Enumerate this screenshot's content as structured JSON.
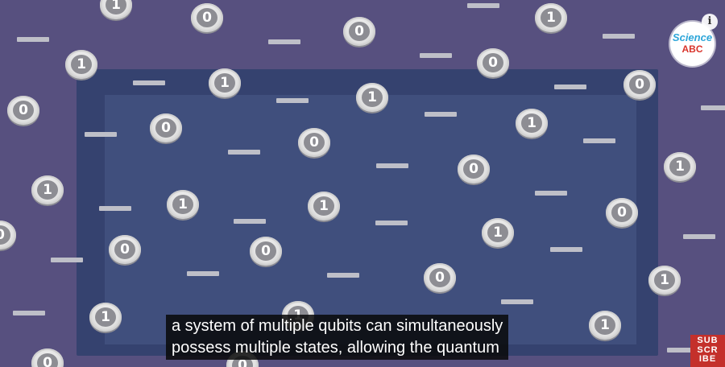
{
  "video": {
    "background_color": "#57507f",
    "panel_color": "#35426f",
    "coins": [
      {
        "label": "1"
      },
      {
        "label": "0"
      },
      {
        "label": "0"
      },
      {
        "label": "1"
      },
      {
        "label": "1"
      },
      {
        "label": "1"
      },
      {
        "label": "0"
      },
      {
        "label": "1"
      },
      {
        "label": "0"
      },
      {
        "label": "0"
      },
      {
        "label": "0"
      },
      {
        "label": "1"
      },
      {
        "label": "1"
      },
      {
        "label": "0"
      },
      {
        "label": "0"
      },
      {
        "label": "0"
      },
      {
        "label": "1"
      },
      {
        "label": "1"
      },
      {
        "label": "1"
      },
      {
        "label": "1"
      },
      {
        "label": "0"
      },
      {
        "label": "0"
      },
      {
        "label": "0"
      },
      {
        "label": "1"
      },
      {
        "label": "0"
      },
      {
        "label": "1"
      },
      {
        "label": "1"
      },
      {
        "label": "1"
      },
      {
        "label": "0"
      },
      {
        "label": "0"
      }
    ]
  },
  "overlay": {
    "logo": {
      "line1": "Science",
      "line2": "ABC"
    },
    "info_label": "i",
    "caption": {
      "line1": "a system of multiple qubits can simultaneously",
      "line2": "possess multiple states, allowing the quantum"
    },
    "subscribe": {
      "line1": "SUB",
      "line2": "SCR",
      "line3": "IBE"
    }
  }
}
